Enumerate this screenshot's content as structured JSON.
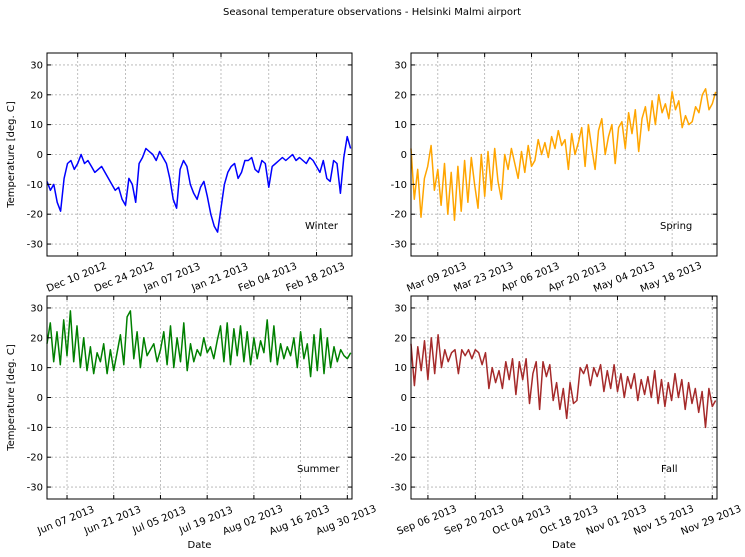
{
  "figure": {
    "title": "Seasonal temperature observations - Helsinki Malmi airport"
  },
  "chart_data": [
    {
      "type": "line",
      "season_label": "Winter",
      "color": "#0000ff",
      "ylabel": "Temperature [deg. C]",
      "xlabel": "",
      "ylim": [
        -34,
        34
      ],
      "yticks": [
        -30,
        -20,
        -10,
        0,
        10,
        20,
        30
      ],
      "xlim": [
        "2012-12-01",
        "2013-02-28"
      ],
      "xticks": [
        {
          "date": "2012-12-10",
          "label": "Dec 10 2012"
        },
        {
          "date": "2012-12-24",
          "label": "Dec 24 2012"
        },
        {
          "date": "2013-01-07",
          "label": "Jan 07 2013"
        },
        {
          "date": "2013-01-21",
          "label": "Jan 21 2013"
        },
        {
          "date": "2013-02-04",
          "label": "Feb 04 2013"
        },
        {
          "date": "2013-02-18",
          "label": "Feb 18 2013"
        }
      ],
      "grid": true,
      "series": [
        {
          "x": [
            "2012-12-01",
            "2012-12-02",
            "2012-12-03",
            "2012-12-04",
            "2012-12-05",
            "2012-12-06",
            "2012-12-07",
            "2012-12-08",
            "2012-12-09",
            "2012-12-10",
            "2012-12-11",
            "2012-12-12",
            "2012-12-13",
            "2012-12-14",
            "2012-12-15",
            "2012-12-16",
            "2012-12-17",
            "2012-12-18",
            "2012-12-19",
            "2012-12-20",
            "2012-12-21",
            "2012-12-22",
            "2012-12-23",
            "2012-12-24",
            "2012-12-25",
            "2012-12-26",
            "2012-12-27",
            "2012-12-28",
            "2012-12-29",
            "2012-12-30",
            "2012-12-31",
            "2013-01-01",
            "2013-01-02",
            "2013-01-03",
            "2013-01-04",
            "2013-01-05",
            "2013-01-06",
            "2013-01-07",
            "2013-01-08",
            "2013-01-09",
            "2013-01-10",
            "2013-01-11",
            "2013-01-12",
            "2013-01-13",
            "2013-01-14",
            "2013-01-15",
            "2013-01-16",
            "2013-01-17",
            "2013-01-18",
            "2013-01-19",
            "2013-01-20",
            "2013-01-21",
            "2013-01-22",
            "2013-01-23",
            "2013-01-24",
            "2013-01-25",
            "2013-01-26",
            "2013-01-27",
            "2013-01-28",
            "2013-01-29",
            "2013-01-30",
            "2013-01-31",
            "2013-02-01",
            "2013-02-02",
            "2013-02-03",
            "2013-02-04",
            "2013-02-05",
            "2013-02-06",
            "2013-02-07",
            "2013-02-08",
            "2013-02-09",
            "2013-02-10",
            "2013-02-11",
            "2013-02-12",
            "2013-02-13",
            "2013-02-14",
            "2013-02-15",
            "2013-02-16",
            "2013-02-17",
            "2013-02-18",
            "2013-02-19",
            "2013-02-20",
            "2013-02-21",
            "2013-02-22",
            "2013-02-23",
            "2013-02-24",
            "2013-02-25",
            "2013-02-26",
            "2013-02-27",
            "2013-02-28"
          ],
          "y": [
            -9,
            -12,
            -10,
            -16,
            -19,
            -8,
            -3,
            -2,
            -5,
            -3,
            0,
            -3,
            -2,
            -4,
            -6,
            -5,
            -4,
            -6,
            -8,
            -10,
            -12,
            -11,
            -15,
            -17,
            -8,
            -10,
            -16,
            -3,
            -1,
            2,
            1,
            0,
            -2,
            1,
            -1,
            -3,
            -8,
            -15,
            -18,
            -5,
            -2,
            -4,
            -10,
            -13,
            -15,
            -11,
            -9,
            -14,
            -20,
            -24,
            -26,
            -18,
            -10,
            -6,
            -4,
            -3,
            -8,
            -6,
            -2,
            -2,
            -1,
            -5,
            -6,
            -2,
            -3,
            -11,
            -4,
            -3,
            -2,
            -1,
            -2,
            -1,
            0,
            -2,
            -1,
            -2,
            -3,
            -1,
            -2,
            -4,
            -6,
            -2,
            -8,
            -9,
            -2,
            -3,
            -13,
            -1,
            6,
            2
          ]
        }
      ]
    },
    {
      "type": "line",
      "season_label": "Spring",
      "color": "#ffa500",
      "ylabel": "",
      "xlabel": "",
      "ylim": [
        -34,
        34
      ],
      "yticks": [
        -30,
        -20,
        -10,
        0,
        10,
        20,
        30
      ],
      "xlim": [
        "2013-03-01",
        "2013-05-31"
      ],
      "xticks": [
        {
          "date": "2013-03-09",
          "label": "Mar 09 2013"
        },
        {
          "date": "2013-03-23",
          "label": "Mar 23 2013"
        },
        {
          "date": "2013-04-06",
          "label": "Apr 06 2013"
        },
        {
          "date": "2013-04-20",
          "label": "Apr 20 2013"
        },
        {
          "date": "2013-05-04",
          "label": "May 04 2013"
        },
        {
          "date": "2013-05-18",
          "label": "May 18 2013"
        }
      ],
      "grid": true,
      "series": [
        {
          "x": [
            "2013-03-01",
            "2013-03-02",
            "2013-03-03",
            "2013-03-04",
            "2013-03-05",
            "2013-03-06",
            "2013-03-07",
            "2013-03-08",
            "2013-03-09",
            "2013-03-10",
            "2013-03-11",
            "2013-03-12",
            "2013-03-13",
            "2013-03-14",
            "2013-03-15",
            "2013-03-16",
            "2013-03-17",
            "2013-03-18",
            "2013-03-19",
            "2013-03-20",
            "2013-03-21",
            "2013-03-22",
            "2013-03-23",
            "2013-03-24",
            "2013-03-25",
            "2013-03-26",
            "2013-03-27",
            "2013-03-28",
            "2013-03-29",
            "2013-03-30",
            "2013-03-31",
            "2013-04-01",
            "2013-04-02",
            "2013-04-03",
            "2013-04-04",
            "2013-04-05",
            "2013-04-06",
            "2013-04-07",
            "2013-04-08",
            "2013-04-09",
            "2013-04-10",
            "2013-04-11",
            "2013-04-12",
            "2013-04-13",
            "2013-04-14",
            "2013-04-15",
            "2013-04-16",
            "2013-04-17",
            "2013-04-18",
            "2013-04-19",
            "2013-04-20",
            "2013-04-21",
            "2013-04-22",
            "2013-04-23",
            "2013-04-24",
            "2013-04-25",
            "2013-04-26",
            "2013-04-27",
            "2013-04-28",
            "2013-04-29",
            "2013-04-30",
            "2013-05-01",
            "2013-05-02",
            "2013-05-03",
            "2013-05-04",
            "2013-05-05",
            "2013-05-06",
            "2013-05-07",
            "2013-05-08",
            "2013-05-09",
            "2013-05-10",
            "2013-05-11",
            "2013-05-12",
            "2013-05-13",
            "2013-05-14",
            "2013-05-15",
            "2013-05-16",
            "2013-05-17",
            "2013-05-18",
            "2013-05-19",
            "2013-05-20",
            "2013-05-21",
            "2013-05-22",
            "2013-05-23",
            "2013-05-24",
            "2013-05-25",
            "2013-05-26",
            "2013-05-27",
            "2013-05-28",
            "2013-05-29",
            "2013-05-30",
            "2013-05-31"
          ],
          "y": [
            2,
            -15,
            -5,
            -21,
            -8,
            -4,
            3,
            -12,
            -5,
            -17,
            -3,
            -20,
            -6,
            -22,
            -4,
            -19,
            -2,
            -16,
            -1,
            -10,
            -18,
            0,
            -14,
            1,
            -12,
            2,
            -9,
            -15,
            0,
            -5,
            2,
            -3,
            -8,
            1,
            -6,
            3,
            -4,
            -2,
            5,
            0,
            4,
            -1,
            6,
            2,
            8,
            3,
            5,
            -5,
            7,
            0,
            4,
            9,
            -4,
            10,
            2,
            -5,
            8,
            12,
            0,
            6,
            10,
            -3,
            9,
            11,
            2,
            14,
            7,
            15,
            1,
            12,
            16,
            8,
            18,
            10,
            20,
            14,
            17,
            12,
            21,
            15,
            18,
            9,
            13,
            10,
            11,
            16,
            14,
            20,
            22,
            15,
            17,
            21
          ]
        }
      ]
    },
    {
      "type": "line",
      "season_label": "Summer",
      "color": "#008000",
      "ylabel": "Temperature [deg. C]",
      "xlabel": "Date",
      "ylim": [
        -34,
        34
      ],
      "yticks": [
        -30,
        -20,
        -10,
        0,
        10,
        20,
        30
      ],
      "xlim": [
        "2013-06-01",
        "2013-08-31"
      ],
      "xticks": [
        {
          "date": "2013-06-07",
          "label": "Jun 07 2013"
        },
        {
          "date": "2013-06-21",
          "label": "Jun 21 2013"
        },
        {
          "date": "2013-07-05",
          "label": "Jul 05 2013"
        },
        {
          "date": "2013-07-19",
          "label": "Jul 19 2013"
        },
        {
          "date": "2013-08-02",
          "label": "Aug 02 2013"
        },
        {
          "date": "2013-08-16",
          "label": "Aug 16 2013"
        },
        {
          "date": "2013-08-30",
          "label": "Aug 30 2013"
        }
      ],
      "grid": true,
      "series": [
        {
          "x": [
            "2013-06-01",
            "2013-06-02",
            "2013-06-03",
            "2013-06-04",
            "2013-06-05",
            "2013-06-06",
            "2013-06-07",
            "2013-06-08",
            "2013-06-09",
            "2013-06-10",
            "2013-06-11",
            "2013-06-12",
            "2013-06-13",
            "2013-06-14",
            "2013-06-15",
            "2013-06-16",
            "2013-06-17",
            "2013-06-18",
            "2013-06-19",
            "2013-06-20",
            "2013-06-21",
            "2013-06-22",
            "2013-06-23",
            "2013-06-24",
            "2013-06-25",
            "2013-06-26",
            "2013-06-27",
            "2013-06-28",
            "2013-06-29",
            "2013-06-30",
            "2013-07-01",
            "2013-07-02",
            "2013-07-03",
            "2013-07-04",
            "2013-07-05",
            "2013-07-06",
            "2013-07-07",
            "2013-07-08",
            "2013-07-09",
            "2013-07-10",
            "2013-07-11",
            "2013-07-12",
            "2013-07-13",
            "2013-07-14",
            "2013-07-15",
            "2013-07-16",
            "2013-07-17",
            "2013-07-18",
            "2013-07-19",
            "2013-07-20",
            "2013-07-21",
            "2013-07-22",
            "2013-07-23",
            "2013-07-24",
            "2013-07-25",
            "2013-07-26",
            "2013-07-27",
            "2013-07-28",
            "2013-07-29",
            "2013-07-30",
            "2013-07-31",
            "2013-08-01",
            "2013-08-02",
            "2013-08-03",
            "2013-08-04",
            "2013-08-05",
            "2013-08-06",
            "2013-08-07",
            "2013-08-08",
            "2013-08-09",
            "2013-08-10",
            "2013-08-11",
            "2013-08-12",
            "2013-08-13",
            "2013-08-14",
            "2013-08-15",
            "2013-08-16",
            "2013-08-17",
            "2013-08-18",
            "2013-08-19",
            "2013-08-20",
            "2013-08-21",
            "2013-08-22",
            "2013-08-23",
            "2013-08-24",
            "2013-08-25",
            "2013-08-26",
            "2013-08-27",
            "2013-08-28",
            "2013-08-29",
            "2013-08-30",
            "2013-08-31"
          ],
          "y": [
            18,
            25,
            12,
            22,
            11,
            26,
            14,
            29,
            12,
            24,
            10,
            20,
            9,
            17,
            8,
            15,
            12,
            18,
            8,
            16,
            9,
            15,
            21,
            11,
            27,
            29,
            13,
            22,
            10,
            20,
            14,
            16,
            18,
            12,
            16,
            22,
            11,
            24,
            10,
            20,
            12,
            25,
            9,
            18,
            12,
            16,
            14,
            20,
            15,
            17,
            13,
            19,
            24,
            12,
            25,
            11,
            23,
            14,
            24,
            12,
            22,
            11,
            20,
            13,
            19,
            15,
            26,
            12,
            24,
            11,
            18,
            13,
            17,
            14,
            20,
            10,
            22,
            13,
            18,
            7,
            21,
            9,
            23,
            8,
            20,
            10,
            17,
            12,
            16,
            14,
            13,
            15
          ]
        }
      ]
    },
    {
      "type": "line",
      "season_label": "Fall",
      "color": "#a52a2a",
      "ylabel": "",
      "xlabel": "Date",
      "ylim": [
        -34,
        34
      ],
      "yticks": [
        -30,
        -20,
        -10,
        0,
        10,
        20,
        30
      ],
      "xlim": [
        "2013-09-01",
        "2013-11-30"
      ],
      "xticks": [
        {
          "date": "2013-09-06",
          "label": "Sep 06 2013"
        },
        {
          "date": "2013-09-20",
          "label": "Sep 20 2013"
        },
        {
          "date": "2013-10-04",
          "label": "Oct 04 2013"
        },
        {
          "date": "2013-10-18",
          "label": "Oct 18 2013"
        },
        {
          "date": "2013-11-01",
          "label": "Nov 01 2013"
        },
        {
          "date": "2013-11-15",
          "label": "Nov 15 2013"
        },
        {
          "date": "2013-11-29",
          "label": "Nov 29 2013"
        }
      ],
      "grid": true,
      "series": [
        {
          "x": [
            "2013-09-01",
            "2013-09-02",
            "2013-09-03",
            "2013-09-04",
            "2013-09-05",
            "2013-09-06",
            "2013-09-07",
            "2013-09-08",
            "2013-09-09",
            "2013-09-10",
            "2013-09-11",
            "2013-09-12",
            "2013-09-13",
            "2013-09-14",
            "2013-09-15",
            "2013-09-16",
            "2013-09-17",
            "2013-09-18",
            "2013-09-19",
            "2013-09-20",
            "2013-09-21",
            "2013-09-22",
            "2013-09-23",
            "2013-09-24",
            "2013-09-25",
            "2013-09-26",
            "2013-09-27",
            "2013-09-28",
            "2013-09-29",
            "2013-09-30",
            "2013-10-01",
            "2013-10-02",
            "2013-10-03",
            "2013-10-04",
            "2013-10-05",
            "2013-10-06",
            "2013-10-07",
            "2013-10-08",
            "2013-10-09",
            "2013-10-10",
            "2013-10-11",
            "2013-10-12",
            "2013-10-13",
            "2013-10-14",
            "2013-10-15",
            "2013-10-16",
            "2013-10-17",
            "2013-10-18",
            "2013-10-19",
            "2013-10-20",
            "2013-10-21",
            "2013-10-22",
            "2013-10-23",
            "2013-10-24",
            "2013-10-25",
            "2013-10-26",
            "2013-10-27",
            "2013-10-28",
            "2013-10-29",
            "2013-10-30",
            "2013-10-31",
            "2013-11-01",
            "2013-11-02",
            "2013-11-03",
            "2013-11-04",
            "2013-11-05",
            "2013-11-06",
            "2013-11-07",
            "2013-11-08",
            "2013-11-09",
            "2013-11-10",
            "2013-11-11",
            "2013-11-12",
            "2013-11-13",
            "2013-11-14",
            "2013-11-15",
            "2013-11-16",
            "2013-11-17",
            "2013-11-18",
            "2013-11-19",
            "2013-11-20",
            "2013-11-21",
            "2013-11-22",
            "2013-11-23",
            "2013-11-24",
            "2013-11-25",
            "2013-11-26",
            "2013-11-27",
            "2013-11-28",
            "2013-11-29",
            "2013-11-30"
          ],
          "y": [
            18,
            4,
            17,
            9,
            19,
            6,
            20,
            8,
            21,
            10,
            16,
            12,
            15,
            16,
            8,
            16,
            14,
            16,
            13,
            16,
            15,
            11,
            15,
            3,
            10,
            5,
            9,
            3,
            12,
            6,
            13,
            1,
            12,
            6,
            13,
            -2,
            8,
            12,
            -4,
            12,
            7,
            11,
            -1,
            5,
            -4,
            3,
            -7,
            5,
            -2,
            -1,
            10,
            8,
            11,
            4,
            10,
            7,
            11,
            2,
            9,
            3,
            11,
            2,
            8,
            0,
            7,
            3,
            8,
            -1,
            6,
            1,
            7,
            0,
            9,
            -2,
            6,
            -3,
            5,
            -1,
            8,
            0,
            6,
            -4,
            5,
            -2,
            3,
            -5,
            2,
            -10,
            3,
            -3,
            -1
          ]
        }
      ]
    }
  ]
}
